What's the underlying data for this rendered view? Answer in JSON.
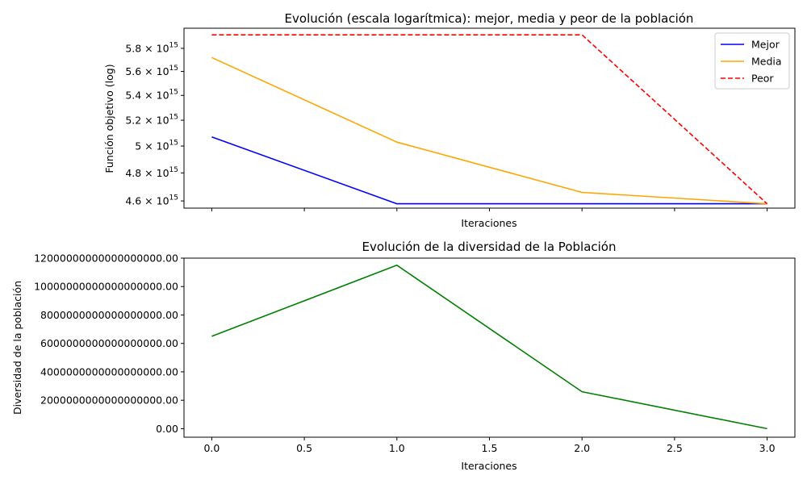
{
  "chart_data": [
    {
      "type": "line",
      "title": "Evolución (escala logarítmica): mejor, media y peor de la población",
      "xlabel": "Iteraciones",
      "ylabel": "Función objetivo (log)",
      "yscale": "log",
      "x": [
        0,
        1,
        2,
        3
      ],
      "xlim": [
        -0.15,
        3.15
      ],
      "ylim": [
        4550000000000000.0,
        5980000000000000.0
      ],
      "show_x_tick_labels": false,
      "x_ticks": [
        0,
        0.5,
        1,
        1.5,
        2,
        2.5,
        3
      ],
      "y_ticks": [
        {
          "value": 4600000000000000.0,
          "mantissa": "4.6",
          "base": "10",
          "exp": "15"
        },
        {
          "value": 4800000000000000.0,
          "mantissa": "4.8",
          "base": "10",
          "exp": "15"
        },
        {
          "value": 5000000000000000.0,
          "mantissa": "5",
          "base": "10",
          "exp": "15"
        },
        {
          "value": 5200000000000000.0,
          "mantissa": "5.2",
          "base": "10",
          "exp": "15"
        },
        {
          "value": 5400000000000000.0,
          "mantissa": "5.4",
          "base": "10",
          "exp": "15"
        },
        {
          "value": 5600000000000000.0,
          "mantissa": "5.6",
          "base": "10",
          "exp": "15"
        },
        {
          "value": 5800000000000000.0,
          "mantissa": "5.8",
          "base": "10",
          "exp": "15"
        }
      ],
      "times_sign": "×",
      "legend": "top-right",
      "grid": false,
      "series": [
        {
          "name": "Mejor",
          "values": [
            5070000000000000.0,
            4580000000000000.0,
            4580000000000000.0,
            4580000000000000.0
          ],
          "color": "#0000ff",
          "dash": "solid"
        },
        {
          "name": "Media",
          "values": [
            5720000000000000.0,
            5030000000000000.0,
            4660000000000000.0,
            4580000000000000.0
          ],
          "color": "#ffa500",
          "dash": "solid"
        },
        {
          "name": "Peor",
          "values": [
            5920000000000000.0,
            5920000000000000.0,
            5920000000000000.0,
            4580000000000000.0
          ],
          "color": "#ff0000",
          "dash": "dashed"
        }
      ]
    },
    {
      "type": "line",
      "title": "Evolución de la diversidad de la Población",
      "xlabel": "Iteraciones",
      "ylabel": "Diversidad de la población",
      "yscale": "linear",
      "x": [
        0,
        1,
        2,
        3
      ],
      "xlim": [
        -0.15,
        3.15
      ],
      "ylim": [
        -6e+17,
        1.2e+19
      ],
      "x_ticks": [
        0,
        0.5,
        1,
        1.5,
        2,
        2.5,
        3
      ],
      "x_tick_labels": [
        "0.0",
        "0.5",
        "1.0",
        "1.5",
        "2.0",
        "2.5",
        "3.0"
      ],
      "y_ticks": [
        0,
        2e+18,
        4e+18,
        6e+18,
        8e+18,
        1e+19,
        1.2e+19
      ],
      "y_tick_labels": [
        "0.00",
        "2000000000000000000.00",
        "4000000000000000000.00",
        "6000000000000000000.00",
        "8000000000000000000.00",
        "10000000000000000000.00",
        "12000000000000000000.00"
      ],
      "grid": false,
      "series": [
        {
          "values": [
            6.5e+18,
            1.15e+19,
            2.6e+18,
            0
          ],
          "color": "#008000",
          "dash": "solid"
        }
      ]
    }
  ]
}
